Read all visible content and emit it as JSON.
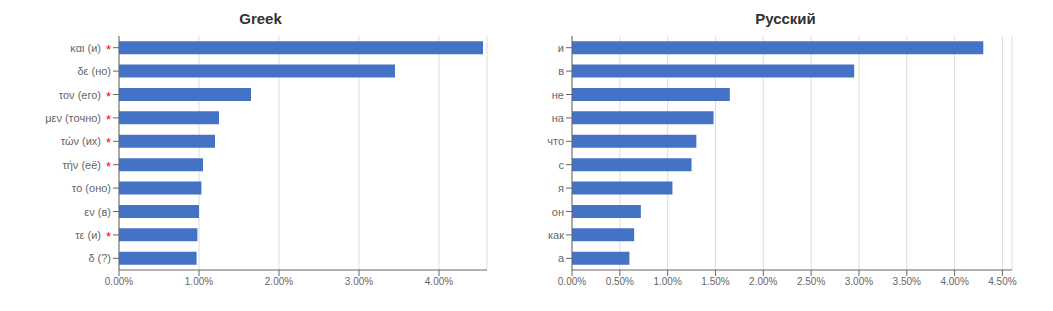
{
  "chart_data": [
    {
      "type": "bar",
      "title": "Greek",
      "orientation": "horizontal",
      "categories": [
        "και (и)",
        "δε (но)",
        "τον (его)",
        "μεν (точно)",
        "τών (их)",
        "τήν (её)",
        "τо (оно)",
        "εν (в)",
        "τε (и)",
        "δ (?)"
      ],
      "values": [
        0.0455,
        0.0345,
        0.0165,
        0.0125,
        0.012,
        0.0105,
        0.0103,
        0.01,
        0.0098,
        0.0097
      ],
      "color": "#4472C4",
      "xlim": [
        0,
        0.046
      ],
      "xticks": [
        {
          "value": 0.0,
          "label": "0.00%"
        },
        {
          "value": 0.01,
          "label": "1.00%"
        },
        {
          "value": 0.02,
          "label": "2.00%"
        },
        {
          "value": 0.03,
          "label": "3.00%"
        },
        {
          "value": 0.04,
          "label": "4.00%"
        }
      ],
      "grid": true,
      "annotations": [
        {
          "category": "και (и)",
          "text": "*",
          "color": "#FF0000"
        },
        {
          "category": "τον (его)",
          "text": "*",
          "color": "#FF0000"
        },
        {
          "category": "μεν (точно)",
          "text": "*",
          "color": "#FF0000"
        },
        {
          "category": "τών (их)",
          "text": "*",
          "color": "#FF0000"
        },
        {
          "category": "τήν (её)",
          "text": "*",
          "color": "#FF0000"
        },
        {
          "category": "τε (и)",
          "text": "*",
          "color": "#FF0000"
        }
      ]
    },
    {
      "type": "bar",
      "title": "Русский",
      "orientation": "horizontal",
      "categories": [
        "и",
        "в",
        "не",
        "на",
        "что",
        "с",
        "я",
        "он",
        "как",
        "а"
      ],
      "values": [
        0.043,
        0.0295,
        0.0165,
        0.0148,
        0.013,
        0.0125,
        0.0105,
        0.0072,
        0.0065,
        0.006
      ],
      "color": "#4472C4",
      "xlim": [
        0,
        0.046
      ],
      "xticks": [
        {
          "value": 0.0,
          "label": "0.00%"
        },
        {
          "value": 0.005,
          "label": "0.50%"
        },
        {
          "value": 0.01,
          "label": "1.00%"
        },
        {
          "value": 0.015,
          "label": "1.50%"
        },
        {
          "value": 0.02,
          "label": "2.00%"
        },
        {
          "value": 0.025,
          "label": "2.50%"
        },
        {
          "value": 0.03,
          "label": "3.00%"
        },
        {
          "value": 0.035,
          "label": "3.50%"
        },
        {
          "value": 0.04,
          "label": "4.00%"
        },
        {
          "value": 0.045,
          "label": "4.50%"
        }
      ],
      "grid": true
    }
  ]
}
